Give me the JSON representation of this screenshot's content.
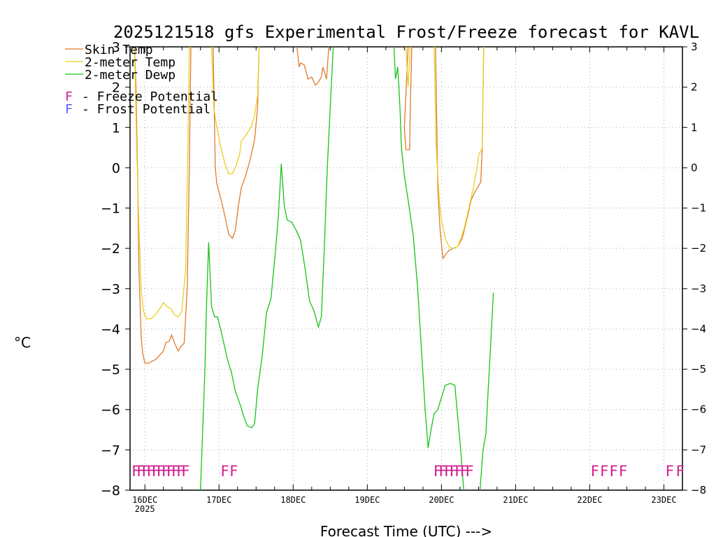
{
  "chart_data": {
    "type": "line",
    "title": "2025121518 gfs Experimental Frost/Freeze forecast for KAVL",
    "xlabel": "Forecast Time (UTC) --->",
    "ylabel": "°C",
    "ylim": [
      -8,
      3
    ],
    "y_ticks": [
      -8,
      -7,
      -6,
      -5,
      -4,
      -3,
      -2,
      -1,
      0,
      1,
      2,
      3
    ],
    "x_unit": "days after 16DEC 00Z",
    "xlim": [
      -0.2,
      7.25
    ],
    "x_ticks": [
      {
        "x": 0,
        "label": "16DEC",
        "sublabel": "2025"
      },
      {
        "x": 1,
        "label": "17DEC"
      },
      {
        "x": 2,
        "label": "18DEC"
      },
      {
        "x": 3,
        "label": "19DEC"
      },
      {
        "x": 4,
        "label": "20DEC"
      },
      {
        "x": 5,
        "label": "21DEC"
      },
      {
        "x": 6,
        "label": "22DEC"
      },
      {
        "x": 7,
        "label": "23DEC"
      }
    ],
    "grid": true,
    "legend_position": "top-left",
    "colors": {
      "skin": "#e07a2c",
      "t2m": "#e8d020",
      "dew": "#16c416",
      "freeze": "#d02090",
      "frost": "#5a5aff",
      "frame": "#000000",
      "grid": "#a9a9a9"
    },
    "series": [
      {
        "name": "Skin Temp",
        "color": "#e07a2c",
        "points": [
          [
            -0.14,
            3.0
          ],
          [
            -0.12,
            2.0
          ],
          [
            -0.1,
            0.0
          ],
          [
            -0.08,
            -2.5
          ],
          [
            -0.05,
            -4.2
          ],
          [
            -0.03,
            -4.6
          ],
          [
            0.0,
            -4.85
          ],
          [
            0.05,
            -4.85
          ],
          [
            0.1,
            -4.8
          ],
          [
            0.15,
            -4.75
          ],
          [
            0.2,
            -4.65
          ],
          [
            0.25,
            -4.55
          ],
          [
            0.28,
            -4.35
          ],
          [
            0.33,
            -4.3
          ],
          [
            0.36,
            -4.15
          ],
          [
            0.4,
            -4.35
          ],
          [
            0.45,
            -4.55
          ],
          [
            0.48,
            -4.45
          ],
          [
            0.53,
            -4.35
          ],
          [
            0.57,
            -3.0
          ],
          [
            0.6,
            0.0
          ],
          [
            0.62,
            3.0
          ],
          null,
          [
            0.92,
            3.0
          ],
          [
            0.95,
            0.0
          ],
          [
            0.97,
            -0.4
          ],
          [
            1.03,
            -0.8
          ],
          [
            1.08,
            -1.2
          ],
          [
            1.13,
            -1.65
          ],
          [
            1.18,
            -1.75
          ],
          [
            1.22,
            -1.55
          ],
          [
            1.26,
            -0.95
          ],
          [
            1.3,
            -0.5
          ],
          [
            1.35,
            -0.25
          ],
          [
            1.42,
            0.2
          ],
          [
            1.48,
            0.7
          ],
          [
            1.52,
            1.5
          ],
          [
            1.54,
            3.0
          ],
          null,
          [
            2.05,
            3.0
          ],
          [
            2.08,
            2.5
          ],
          [
            2.1,
            2.6
          ],
          [
            2.15,
            2.55
          ],
          [
            2.2,
            2.2
          ],
          [
            2.25,
            2.25
          ],
          [
            2.3,
            2.05
          ],
          [
            2.33,
            2.1
          ],
          [
            2.38,
            2.25
          ],
          [
            2.4,
            2.5
          ],
          [
            2.45,
            2.2
          ],
          [
            2.48,
            3.0
          ],
          null,
          [
            3.55,
            3.0
          ],
          [
            3.5,
            1.0
          ],
          [
            3.52,
            0.45
          ],
          [
            3.55,
            0.45
          ],
          [
            3.57,
            0.45
          ],
          [
            3.58,
            1.5
          ],
          [
            3.6,
            3.0
          ],
          null,
          [
            3.92,
            3.0
          ],
          [
            3.95,
            -0.5
          ],
          [
            3.98,
            -1.5
          ],
          [
            4.02,
            -2.25
          ],
          [
            4.06,
            -2.15
          ],
          [
            4.1,
            -2.05
          ],
          [
            4.16,
            -2.0
          ],
          [
            4.22,
            -1.95
          ],
          [
            4.28,
            -1.75
          ],
          [
            4.34,
            -1.3
          ],
          [
            4.4,
            -0.8
          ],
          [
            4.45,
            -0.6
          ],
          [
            4.5,
            -0.45
          ],
          [
            4.53,
            -0.35
          ],
          [
            4.55,
            0.5
          ],
          [
            4.57,
            3.0
          ]
        ]
      },
      {
        "name": "2-meter Temp",
        "color": "#e8d020",
        "points": [
          [
            -0.14,
            3.0
          ],
          [
            -0.11,
            0.5
          ],
          [
            -0.08,
            -1.5
          ],
          [
            -0.05,
            -3.0
          ],
          [
            -0.02,
            -3.55
          ],
          [
            0.02,
            -3.75
          ],
          [
            0.08,
            -3.75
          ],
          [
            0.14,
            -3.65
          ],
          [
            0.2,
            -3.5
          ],
          [
            0.25,
            -3.35
          ],
          [
            0.3,
            -3.45
          ],
          [
            0.35,
            -3.5
          ],
          [
            0.4,
            -3.65
          ],
          [
            0.45,
            -3.7
          ],
          [
            0.5,
            -3.55
          ],
          [
            0.55,
            -2.5
          ],
          [
            0.58,
            0.5
          ],
          [
            0.6,
            3.0
          ],
          null,
          [
            0.9,
            3.0
          ],
          [
            0.93,
            1.5
          ],
          [
            0.97,
            1.0
          ],
          [
            1.02,
            0.55
          ],
          [
            1.08,
            0.1
          ],
          [
            1.13,
            -0.15
          ],
          [
            1.18,
            -0.15
          ],
          [
            1.23,
            0.05
          ],
          [
            1.28,
            0.35
          ],
          [
            1.3,
            0.65
          ],
          [
            1.36,
            0.8
          ],
          [
            1.43,
            1.0
          ],
          [
            1.48,
            1.3
          ],
          [
            1.52,
            1.8
          ],
          [
            1.54,
            3.0
          ],
          null,
          [
            3.52,
            3.0
          ],
          [
            3.55,
            2.0
          ],
          [
            3.58,
            3.0
          ],
          null,
          [
            3.9,
            3.0
          ],
          [
            3.93,
            0.5
          ],
          [
            3.97,
            -0.8
          ],
          [
            4.0,
            -1.3
          ],
          [
            4.05,
            -1.75
          ],
          [
            4.1,
            -1.95
          ],
          [
            4.15,
            -2.0
          ],
          [
            4.22,
            -1.95
          ],
          [
            4.3,
            -1.55
          ],
          [
            4.37,
            -1.0
          ],
          [
            4.43,
            -0.5
          ],
          [
            4.48,
            0.0
          ],
          [
            4.5,
            0.3
          ],
          [
            4.55,
            0.5
          ],
          [
            4.57,
            3.0
          ]
        ]
      },
      {
        "name": "2-meter Dewp",
        "color": "#16c416",
        "points": [
          [
            0.75,
            -8.0
          ],
          [
            0.78,
            -6.5
          ],
          [
            0.81,
            -5.0
          ],
          [
            0.83,
            -3.5
          ],
          [
            0.86,
            -1.85
          ],
          [
            0.9,
            -3.45
          ],
          [
            0.94,
            -3.7
          ],
          [
            0.98,
            -3.7
          ],
          [
            1.02,
            -4.0
          ],
          [
            1.07,
            -4.4
          ],
          [
            1.12,
            -4.8
          ],
          [
            1.17,
            -5.1
          ],
          [
            1.22,
            -5.55
          ],
          [
            1.28,
            -5.85
          ],
          [
            1.33,
            -6.15
          ],
          [
            1.38,
            -6.4
          ],
          [
            1.44,
            -6.45
          ],
          [
            1.48,
            -6.35
          ],
          [
            1.52,
            -5.5
          ],
          [
            1.58,
            -4.7
          ],
          [
            1.64,
            -3.6
          ],
          [
            1.7,
            -3.25
          ],
          [
            1.76,
            -2.1
          ],
          [
            1.8,
            -1.2
          ],
          [
            1.84,
            0.1
          ],
          [
            1.88,
            -0.95
          ],
          [
            1.92,
            -1.3
          ],
          [
            1.98,
            -1.35
          ],
          [
            2.04,
            -1.55
          ],
          [
            2.1,
            -1.8
          ],
          [
            2.16,
            -2.5
          ],
          [
            2.22,
            -3.3
          ],
          [
            2.28,
            -3.55
          ],
          [
            2.34,
            -3.95
          ],
          [
            2.38,
            -3.7
          ],
          [
            2.42,
            -2.0
          ],
          [
            2.46,
            0.0
          ],
          [
            2.5,
            1.5
          ],
          [
            2.54,
            3.0
          ],
          null,
          [
            3.36,
            3.0
          ],
          [
            3.38,
            2.2
          ],
          [
            3.41,
            2.5
          ],
          [
            3.44,
            1.5
          ],
          [
            3.46,
            0.5
          ],
          [
            3.5,
            -0.2
          ],
          [
            3.55,
            -0.8
          ],
          [
            3.62,
            -1.7
          ],
          [
            3.68,
            -3.0
          ],
          [
            3.73,
            -4.5
          ],
          [
            3.78,
            -6.0
          ],
          [
            3.82,
            -6.95
          ],
          [
            3.86,
            -6.5
          ],
          [
            3.9,
            -6.1
          ],
          [
            3.95,
            -6.0
          ],
          [
            4.0,
            -5.7
          ],
          [
            4.05,
            -5.4
          ],
          [
            4.12,
            -5.35
          ],
          [
            4.18,
            -5.4
          ],
          [
            4.22,
            -6.2
          ],
          [
            4.26,
            -7.0
          ],
          [
            4.3,
            -8.0
          ],
          null,
          [
            4.52,
            -8.0
          ],
          [
            4.56,
            -7.0
          ],
          [
            4.6,
            -6.6
          ],
          [
            4.63,
            -5.5
          ],
          [
            4.66,
            -4.5
          ],
          [
            4.7,
            -3.1
          ]
        ]
      }
    ],
    "freeze_potential_marks": [
      {
        "start": -0.12,
        "end": 0.55,
        "count": 11
      },
      {
        "start": 1.08,
        "end": 1.2,
        "count": 2
      },
      {
        "start": 3.95,
        "end": 4.38,
        "count": 7
      },
      {
        "start": 6.07,
        "end": 6.45,
        "count": 4
      },
      {
        "start": 7.08,
        "end": 7.22,
        "count": 2
      }
    ],
    "freeze_mark_level": -7.5,
    "legend": [
      {
        "label": "Skin Temp",
        "color": "#e07a2c",
        "kind": "line"
      },
      {
        "label": "2-meter Temp",
        "color": "#e8d020",
        "kind": "line"
      },
      {
        "label": "2-meter Dewp",
        "color": "#16c416",
        "kind": "line"
      },
      {
        "label": "F - Freeze Potential",
        "color": "#d02090",
        "kind": "glyph",
        "glyph": "F",
        "text": "- Freeze Potential"
      },
      {
        "label": "F - Frost Potential",
        "color": "#5a5aff",
        "kind": "glyph",
        "glyph": "F",
        "text": "- Frost Potential"
      }
    ]
  }
}
